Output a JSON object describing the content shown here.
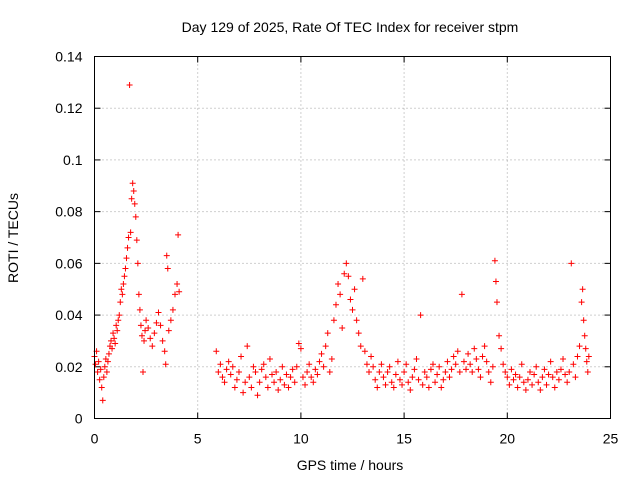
{
  "chart_data": {
    "type": "scatter",
    "title": "Day 129 of 2025, Rate Of TEC Index for receiver stpm",
    "xlabel": "GPS time / hours",
    "ylabel": "ROTI / TECUs",
    "xlim": [
      0,
      25
    ],
    "ylim": [
      0,
      0.14
    ],
    "xticks": [
      0,
      5,
      10,
      15,
      20,
      25
    ],
    "yticks": [
      0,
      0.02,
      0.04,
      0.06,
      0.08,
      0.1,
      0.12,
      0.14
    ],
    "ytick_labels": [
      "0",
      "0.02",
      "0.04",
      "0.06",
      "0.08",
      "0.1",
      "0.12",
      "0.14"
    ],
    "grid": true,
    "marker": "+",
    "series_color": "#ff0000",
    "series": [
      {
        "name": "ROTI",
        "points": [
          [
            0.0,
            0.024
          ],
          [
            0.05,
            0.021
          ],
          [
            0.1,
            0.026
          ],
          [
            0.15,
            0.018
          ],
          [
            0.2,
            0.022
          ],
          [
            0.25,
            0.015
          ],
          [
            0.3,
            0.019
          ],
          [
            0.35,
            0.012
          ],
          [
            0.4,
            0.007
          ],
          [
            0.45,
            0.016
          ],
          [
            0.5,
            0.02
          ],
          [
            0.55,
            0.023
          ],
          [
            0.6,
            0.018
          ],
          [
            0.65,
            0.022
          ],
          [
            0.7,
            0.025
          ],
          [
            0.75,
            0.028
          ],
          [
            0.8,
            0.03
          ],
          [
            0.85,
            0.027
          ],
          [
            0.9,
            0.033
          ],
          [
            0.95,
            0.031
          ],
          [
            1.0,
            0.029
          ],
          [
            1.05,
            0.036
          ],
          [
            1.1,
            0.034
          ],
          [
            1.15,
            0.038
          ],
          [
            1.2,
            0.04
          ],
          [
            1.25,
            0.045
          ],
          [
            1.3,
            0.05
          ],
          [
            1.35,
            0.048
          ],
          [
            1.4,
            0.052
          ],
          [
            1.45,
            0.055
          ],
          [
            1.5,
            0.058
          ],
          [
            1.55,
            0.062
          ],
          [
            1.6,
            0.066
          ],
          [
            1.65,
            0.07
          ],
          [
            1.7,
            0.129
          ],
          [
            1.75,
            0.072
          ],
          [
            1.8,
            0.085
          ],
          [
            1.85,
            0.091
          ],
          [
            1.9,
            0.088
          ],
          [
            1.95,
            0.083
          ],
          [
            2.0,
            0.078
          ],
          [
            2.05,
            0.069
          ],
          [
            2.1,
            0.06
          ],
          [
            2.15,
            0.048
          ],
          [
            2.2,
            0.042
          ],
          [
            2.25,
            0.036
          ],
          [
            2.3,
            0.032
          ],
          [
            2.35,
            0.018
          ],
          [
            2.4,
            0.03
          ],
          [
            2.45,
            0.034
          ],
          [
            2.5,
            0.038
          ],
          [
            2.6,
            0.035
          ],
          [
            2.7,
            0.031
          ],
          [
            2.8,
            0.028
          ],
          [
            2.9,
            0.033
          ],
          [
            3.0,
            0.037
          ],
          [
            3.1,
            0.041
          ],
          [
            3.2,
            0.036
          ],
          [
            3.3,
            0.03
          ],
          [
            3.4,
            0.026
          ],
          [
            3.45,
            0.021
          ],
          [
            3.5,
            0.063
          ],
          [
            3.55,
            0.058
          ],
          [
            3.6,
            0.034
          ],
          [
            3.7,
            0.038
          ],
          [
            3.8,
            0.042
          ],
          [
            3.9,
            0.048
          ],
          [
            4.0,
            0.052
          ],
          [
            4.05,
            0.071
          ],
          [
            4.1,
            0.049
          ],
          [
            5.9,
            0.026
          ],
          [
            6.0,
            0.018
          ],
          [
            6.1,
            0.021
          ],
          [
            6.2,
            0.016
          ],
          [
            6.3,
            0.014
          ],
          [
            6.4,
            0.019
          ],
          [
            6.5,
            0.022
          ],
          [
            6.6,
            0.017
          ],
          [
            6.7,
            0.02
          ],
          [
            6.8,
            0.012
          ],
          [
            6.9,
            0.015
          ],
          [
            7.0,
            0.018
          ],
          [
            7.1,
            0.024
          ],
          [
            7.2,
            0.01
          ],
          [
            7.3,
            0.014
          ],
          [
            7.4,
            0.028
          ],
          [
            7.5,
            0.016
          ],
          [
            7.6,
            0.012
          ],
          [
            7.7,
            0.02
          ],
          [
            7.8,
            0.018
          ],
          [
            7.9,
            0.009
          ],
          [
            8.0,
            0.014
          ],
          [
            8.1,
            0.019
          ],
          [
            8.2,
            0.021
          ],
          [
            8.3,
            0.016
          ],
          [
            8.4,
            0.012
          ],
          [
            8.5,
            0.023
          ],
          [
            8.6,
            0.017
          ],
          [
            8.7,
            0.014
          ],
          [
            8.8,
            0.018
          ],
          [
            8.9,
            0.011
          ],
          [
            9.0,
            0.015
          ],
          [
            9.1,
            0.02
          ],
          [
            9.2,
            0.013
          ],
          [
            9.3,
            0.017
          ],
          [
            9.4,
            0.012
          ],
          [
            9.5,
            0.016
          ],
          [
            9.6,
            0.019
          ],
          [
            9.7,
            0.014
          ],
          [
            9.8,
            0.02
          ],
          [
            9.9,
            0.029
          ],
          [
            10.0,
            0.027
          ],
          [
            10.1,
            0.016
          ],
          [
            10.2,
            0.013
          ],
          [
            10.3,
            0.018
          ],
          [
            10.4,
            0.021
          ],
          [
            10.5,
            0.016
          ],
          [
            10.6,
            0.014
          ],
          [
            10.7,
            0.019
          ],
          [
            10.8,
            0.017
          ],
          [
            10.9,
            0.022
          ],
          [
            11.0,
            0.025
          ],
          [
            11.1,
            0.02
          ],
          [
            11.2,
            0.028
          ],
          [
            11.3,
            0.033
          ],
          [
            11.4,
            0.018
          ],
          [
            11.5,
            0.023
          ],
          [
            11.6,
            0.038
          ],
          [
            11.7,
            0.044
          ],
          [
            11.8,
            0.052
          ],
          [
            11.9,
            0.048
          ],
          [
            12.0,
            0.035
          ],
          [
            12.1,
            0.056
          ],
          [
            12.2,
            0.06
          ],
          [
            12.3,
            0.055
          ],
          [
            12.4,
            0.046
          ],
          [
            12.5,
            0.042
          ],
          [
            12.6,
            0.05
          ],
          [
            12.7,
            0.038
          ],
          [
            12.8,
            0.033
          ],
          [
            12.9,
            0.028
          ],
          [
            13.0,
            0.054
          ],
          [
            13.1,
            0.026
          ],
          [
            13.2,
            0.021
          ],
          [
            13.3,
            0.018
          ],
          [
            13.4,
            0.024
          ],
          [
            13.5,
            0.02
          ],
          [
            13.6,
            0.015
          ],
          [
            13.7,
            0.012
          ],
          [
            13.8,
            0.018
          ],
          [
            13.9,
            0.021
          ],
          [
            14.0,
            0.016
          ],
          [
            14.1,
            0.013
          ],
          [
            14.2,
            0.018
          ],
          [
            14.3,
            0.02
          ],
          [
            14.4,
            0.014
          ],
          [
            14.5,
            0.012
          ],
          [
            14.6,
            0.017
          ],
          [
            14.7,
            0.022
          ],
          [
            14.8,
            0.015
          ],
          [
            14.9,
            0.013
          ],
          [
            15.0,
            0.018
          ],
          [
            15.1,
            0.021
          ],
          [
            15.2,
            0.014
          ],
          [
            15.3,
            0.011
          ],
          [
            15.4,
            0.016
          ],
          [
            15.5,
            0.019
          ],
          [
            15.6,
            0.023
          ],
          [
            15.7,
            0.015
          ],
          [
            15.8,
            0.04
          ],
          [
            15.9,
            0.013
          ],
          [
            16.0,
            0.018
          ],
          [
            16.1,
            0.016
          ],
          [
            16.2,
            0.012
          ],
          [
            16.3,
            0.019
          ],
          [
            16.4,
            0.021
          ],
          [
            16.5,
            0.014
          ],
          [
            16.6,
            0.017
          ],
          [
            16.7,
            0.02
          ],
          [
            16.8,
            0.012
          ],
          [
            16.9,
            0.015
          ],
          [
            17.0,
            0.018
          ],
          [
            17.1,
            0.022
          ],
          [
            17.2,
            0.016
          ],
          [
            17.3,
            0.019
          ],
          [
            17.4,
            0.024
          ],
          [
            17.5,
            0.021
          ],
          [
            17.6,
            0.026
          ],
          [
            17.7,
            0.018
          ],
          [
            17.8,
            0.048
          ],
          [
            17.9,
            0.022
          ],
          [
            18.0,
            0.019
          ],
          [
            18.1,
            0.025
          ],
          [
            18.2,
            0.021
          ],
          [
            18.3,
            0.018
          ],
          [
            18.4,
            0.027
          ],
          [
            18.5,
            0.023
          ],
          [
            18.6,
            0.019
          ],
          [
            18.7,
            0.016
          ],
          [
            18.8,
            0.024
          ],
          [
            18.9,
            0.028
          ],
          [
            19.0,
            0.022
          ],
          [
            19.1,
            0.018
          ],
          [
            19.2,
            0.014
          ],
          [
            19.3,
            0.02
          ],
          [
            19.4,
            0.061
          ],
          [
            19.45,
            0.053
          ],
          [
            19.5,
            0.045
          ],
          [
            19.6,
            0.032
          ],
          [
            19.7,
            0.027
          ],
          [
            19.8,
            0.021
          ],
          [
            19.9,
            0.018
          ],
          [
            20.0,
            0.016
          ],
          [
            20.1,
            0.013
          ],
          [
            20.2,
            0.019
          ],
          [
            20.3,
            0.015
          ],
          [
            20.4,
            0.017
          ],
          [
            20.5,
            0.012
          ],
          [
            20.6,
            0.016
          ],
          [
            20.7,
            0.021
          ],
          [
            20.8,
            0.014
          ],
          [
            20.9,
            0.011
          ],
          [
            21.0,
            0.015
          ],
          [
            21.1,
            0.018
          ],
          [
            21.2,
            0.013
          ],
          [
            21.3,
            0.017
          ],
          [
            21.4,
            0.02
          ],
          [
            21.5,
            0.014
          ],
          [
            21.6,
            0.011
          ],
          [
            21.7,
            0.016
          ],
          [
            21.8,
            0.019
          ],
          [
            21.9,
            0.013
          ],
          [
            22.0,
            0.017
          ],
          [
            22.1,
            0.022
          ],
          [
            22.2,
            0.016
          ],
          [
            22.3,
            0.012
          ],
          [
            22.4,
            0.018
          ],
          [
            22.5,
            0.015
          ],
          [
            22.6,
            0.019
          ],
          [
            22.7,
            0.023
          ],
          [
            22.8,
            0.017
          ],
          [
            22.9,
            0.014
          ],
          [
            23.0,
            0.018
          ],
          [
            23.1,
            0.06
          ],
          [
            23.2,
            0.021
          ],
          [
            23.3,
            0.016
          ],
          [
            23.4,
            0.024
          ],
          [
            23.5,
            0.028
          ],
          [
            23.6,
            0.045
          ],
          [
            23.65,
            0.05
          ],
          [
            23.7,
            0.038
          ],
          [
            23.75,
            0.032
          ],
          [
            23.8,
            0.027
          ],
          [
            23.85,
            0.022
          ],
          [
            23.9,
            0.018
          ],
          [
            23.95,
            0.024
          ]
        ]
      }
    ]
  }
}
